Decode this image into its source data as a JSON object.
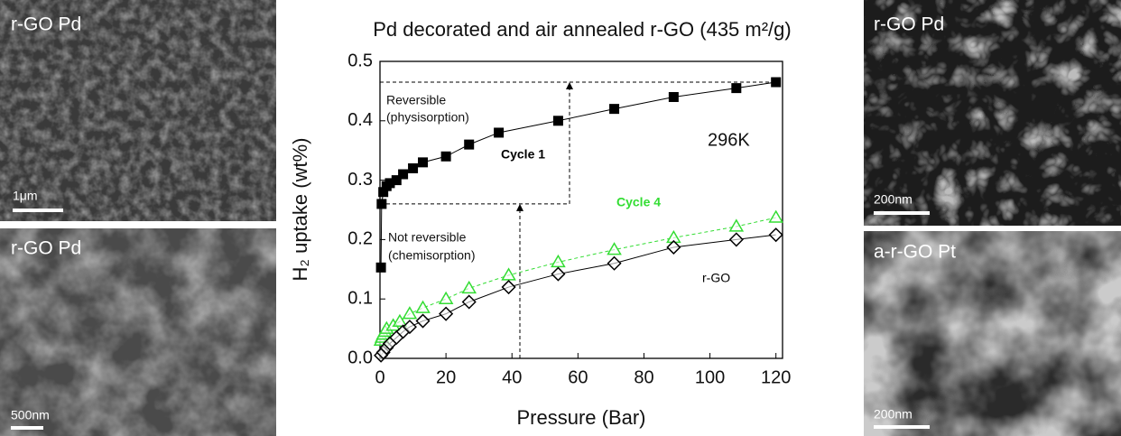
{
  "chart_data": {
    "type": "line",
    "title": "Pd decorated and air annealed  r-GO (435 m²/g)",
    "xlabel": "Pressure (Bar)",
    "ylabel": "H₂ uptake (wt%)",
    "xlim": [
      0,
      122
    ],
    "ylim": [
      0,
      0.5
    ],
    "xticks": [
      0,
      20,
      40,
      60,
      80,
      100,
      120
    ],
    "yticks": [
      {
        "value": 0,
        "label": "0.0"
      },
      0.1,
      0.2,
      0.3,
      0.4,
      0.5
    ],
    "annotations": [
      "Reversible",
      "(physisorption)",
      "Not reversible",
      "(chemisorption)",
      "296K"
    ],
    "series": [
      {
        "name": "Cycle 1",
        "color": "#000000",
        "marker": "square",
        "x": [
          0.3,
          0.5,
          1,
          2,
          3,
          5,
          7,
          10,
          13,
          20,
          27,
          36,
          54,
          71,
          89,
          108,
          120
        ],
        "values": [
          0.153,
          0.26,
          0.28,
          0.29,
          0.295,
          0.3,
          0.31,
          0.32,
          0.33,
          0.34,
          0.36,
          0.38,
          0.4,
          0.42,
          0.44,
          0.455,
          0.465
        ]
      },
      {
        "name": "Cycle 4",
        "color": "#33dd33",
        "marker": "triangle",
        "x": [
          0.3,
          0.6,
          1,
          1.5,
          2,
          4,
          6,
          9,
          13,
          20,
          27,
          39,
          54,
          71,
          89,
          108,
          120
        ],
        "values": [
          0.03,
          0.035,
          0.04,
          0.045,
          0.05,
          0.055,
          0.062,
          0.075,
          0.085,
          0.1,
          0.118,
          0.14,
          0.162,
          0.183,
          0.203,
          0.222,
          0.237
        ]
      },
      {
        "name": "r-GO",
        "color": "#000000",
        "marker": "diamond",
        "x": [
          0.3,
          1,
          2,
          3,
          5,
          7,
          9,
          13,
          20,
          27,
          39,
          54,
          71,
          89,
          108,
          120
        ],
        "values": [
          0.005,
          0.01,
          0.018,
          0.025,
          0.035,
          0.045,
          0.053,
          0.063,
          0.075,
          0.095,
          0.12,
          0.142,
          0.16,
          0.187,
          0.2,
          0.208
        ]
      }
    ]
  },
  "panels": [
    {
      "label": "r-GO Pd",
      "scale": "1μm"
    },
    {
      "label": "r-GO Pd",
      "scale": "500nm"
    },
    {
      "label": "r-GO Pd",
      "scale": "200nm"
    },
    {
      "label": "a-r-GO Pt",
      "scale": "200nm"
    }
  ]
}
